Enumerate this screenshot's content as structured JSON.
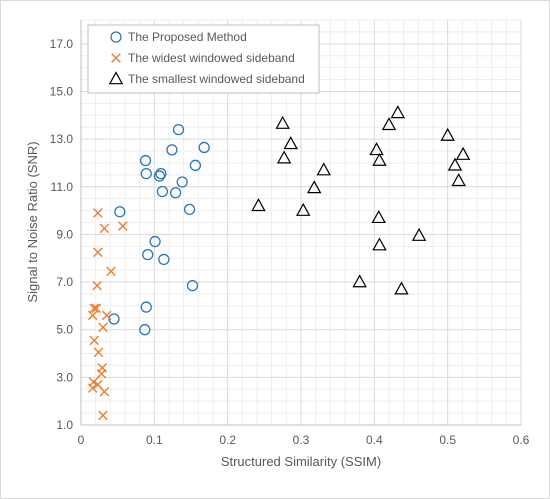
{
  "chart_data": {
    "type": "scatter",
    "title": "",
    "xlabel": "Structured Similarity (SSIM)",
    "ylabel": "Signal to Noise Ratio (SNR)",
    "xlim": [
      0,
      0.6
    ],
    "ylim": [
      1.0,
      18.0
    ],
    "x_ticks": [
      "0",
      "0.1",
      "0.2",
      "0.3",
      "0.4",
      "0.5",
      "0.6"
    ],
    "y_ticks": [
      "1.0",
      "3.0",
      "5.0",
      "7.0",
      "9.0",
      "11.0",
      "13.0",
      "15.0",
      "17.0"
    ],
    "grid": true,
    "legend_position": "top-left",
    "series": [
      {
        "name": "The Proposed Method",
        "marker": "circle",
        "color": "#2e75b6",
        "points": [
          [
            0.133,
            13.4
          ],
          [
            0.168,
            12.65
          ],
          [
            0.124,
            12.55
          ],
          [
            0.088,
            12.1
          ],
          [
            0.156,
            11.9
          ],
          [
            0.089,
            11.55
          ],
          [
            0.109,
            11.55
          ],
          [
            0.107,
            11.45
          ],
          [
            0.138,
            11.2
          ],
          [
            0.111,
            10.8
          ],
          [
            0.129,
            10.75
          ],
          [
            0.148,
            10.05
          ],
          [
            0.053,
            9.95
          ],
          [
            0.101,
            8.7
          ],
          [
            0.091,
            8.15
          ],
          [
            0.113,
            7.95
          ],
          [
            0.152,
            6.85
          ],
          [
            0.089,
            5.95
          ],
          [
            0.045,
            5.45
          ],
          [
            0.087,
            5.0
          ]
        ]
      },
      {
        "name": "The widest windowed sideband",
        "marker": "x",
        "color": "#ed7d31",
        "points": [
          [
            0.023,
            9.9
          ],
          [
            0.057,
            9.35
          ],
          [
            0.032,
            9.25
          ],
          [
            0.023,
            8.25
          ],
          [
            0.041,
            7.45
          ],
          [
            0.022,
            6.85
          ],
          [
            0.018,
            5.9
          ],
          [
            0.021,
            5.9
          ],
          [
            0.016,
            5.6
          ],
          [
            0.035,
            5.6
          ],
          [
            0.03,
            5.1
          ],
          [
            0.018,
            4.55
          ],
          [
            0.024,
            4.05
          ],
          [
            0.029,
            3.4
          ],
          [
            0.028,
            3.15
          ],
          [
            0.017,
            2.8
          ],
          [
            0.023,
            2.7
          ],
          [
            0.016,
            2.55
          ],
          [
            0.032,
            2.4
          ],
          [
            0.03,
            1.4
          ]
        ]
      },
      {
        "name": "The smallest windowed sideband",
        "marker": "triangle",
        "color": "#000000",
        "points": [
          [
            0.432,
            14.1
          ],
          [
            0.42,
            13.6
          ],
          [
            0.275,
            13.65
          ],
          [
            0.5,
            13.15
          ],
          [
            0.286,
            12.8
          ],
          [
            0.403,
            12.55
          ],
          [
            0.521,
            12.35
          ],
          [
            0.277,
            12.2
          ],
          [
            0.407,
            12.1
          ],
          [
            0.51,
            11.9
          ],
          [
            0.331,
            11.7
          ],
          [
            0.515,
            11.25
          ],
          [
            0.318,
            10.95
          ],
          [
            0.242,
            10.2
          ],
          [
            0.303,
            10.0
          ],
          [
            0.406,
            9.7
          ],
          [
            0.461,
            8.95
          ],
          [
            0.407,
            8.55
          ],
          [
            0.38,
            7.0
          ],
          [
            0.437,
            6.7
          ]
        ]
      }
    ]
  }
}
